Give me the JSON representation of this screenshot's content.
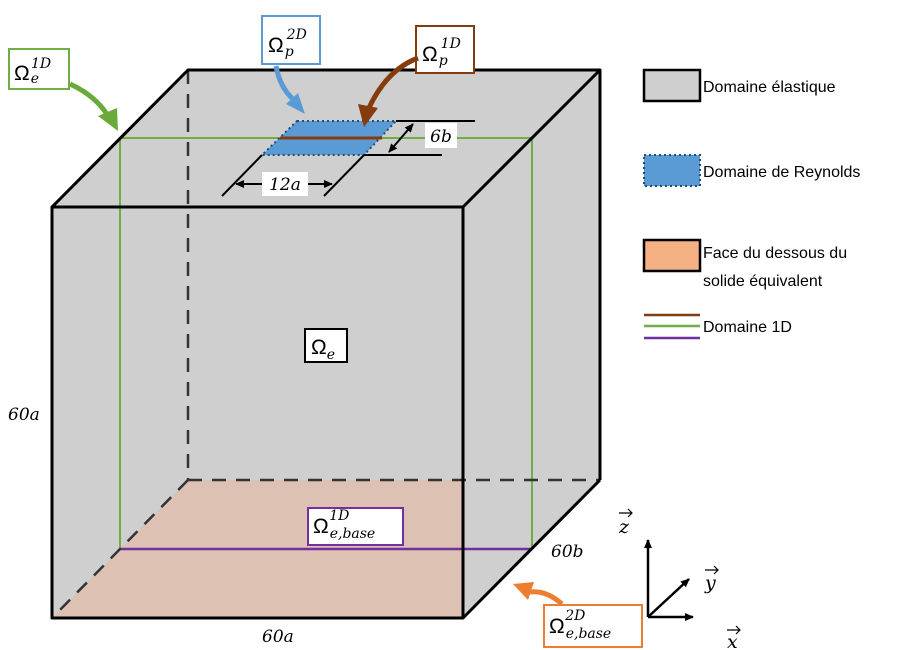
{
  "labels": {
    "omega_e": "Ω",
    "omega_e_sub": "e",
    "omega_e1d": "Ω",
    "omega_e1d_sub": "e",
    "omega_e1d_sup": "1D",
    "omega_p2d": "Ω",
    "omega_p2d_sub": "p",
    "omega_p2d_sup": "2D",
    "omega_p1d": "Ω",
    "omega_p1d_sub": "p",
    "omega_p1d_sup": "1D",
    "omega_ebase1d": "Ω",
    "omega_ebase1d_sub": "e,base",
    "omega_ebase1d_sup": "1D",
    "omega_ebase2d": "Ω",
    "omega_ebase2d_sub": "e,base",
    "omega_ebase2d_sup": "2D"
  },
  "dimensions": {
    "height": "60a",
    "width": "60a",
    "depth": "60b",
    "contact_a": "12a",
    "contact_b": "6b"
  },
  "axes": {
    "z": "z",
    "y": "y",
    "x": "x"
  },
  "legend": {
    "elastic": "Domaine élastique",
    "reynolds": "Domaine de Reynolds",
    "bottom_face_line1": "Face du dessous du",
    "bottom_face_line2": "solide équivalent",
    "domain_1d": "Domaine 1D"
  },
  "colors": {
    "solid_fill": "#d0cfd0",
    "bottom_fill": "#e8b79a",
    "reynolds_fill": "#5b9bd5",
    "green": "#70ad47",
    "green_arrow": "#6aaa3a",
    "brown": "#843c0c",
    "purple": "#7030a0",
    "blue_box": "#5b9bd5",
    "orange": "#ed7d31",
    "legend_orange": "#f4b183"
  }
}
